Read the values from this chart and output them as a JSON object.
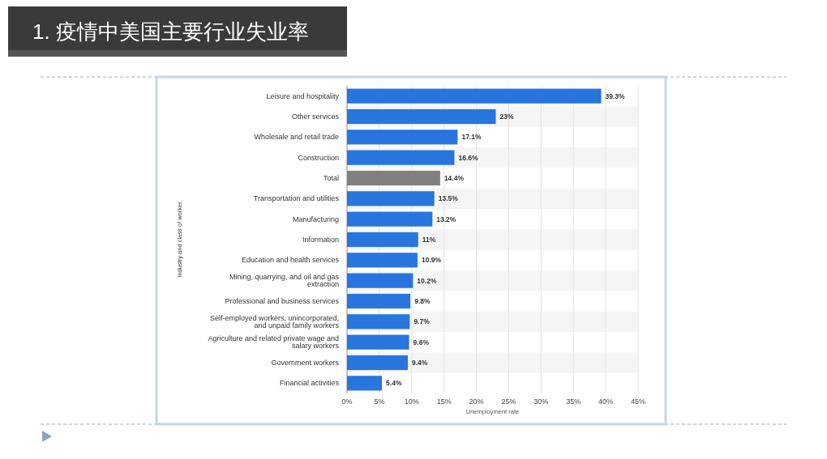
{
  "chart_data": {
    "type": "bar",
    "orientation": "horizontal",
    "title": "1. 疫情中美国主要行业失业率",
    "xlabel": "Unemployment rate",
    "ylabel": "Industry and class of worker",
    "categories": [
      "Leisure and hospitality",
      "Other services",
      "Wholesale and retail trade",
      "Construction",
      "Total",
      "Transportation and utilities",
      "Manufacturing",
      "Information",
      "Education and health services",
      "Mining, quarrying, and oil and gas extraction",
      "Professional and business services",
      "Self-employed workers, unincorporated, and unpaid family workers",
      "Agriculture and related private wage and salary workers",
      "Government workers",
      "Financial activities"
    ],
    "values": [
      39.3,
      23,
      17.1,
      16.6,
      14.4,
      13.5,
      13.2,
      11,
      10.9,
      10.2,
      9.8,
      9.7,
      9.6,
      9.4,
      5.4
    ],
    "colors": [
      "#2876dd",
      "#2876dd",
      "#2876dd",
      "#2876dd",
      "#808080",
      "#2876dd",
      "#2876dd",
      "#2876dd",
      "#2876dd",
      "#2876dd",
      "#2876dd",
      "#2876dd",
      "#2876dd",
      "#2876dd",
      "#2876dd"
    ],
    "value_labels": [
      "39.3%",
      "23%",
      "17.1%",
      "16.6%",
      "14.4%",
      "13.5%",
      "13.2%",
      "11%",
      "10.9%",
      "10.2%",
      "9.8%",
      "9.7%",
      "9.6%",
      "9.4%",
      "5.4%"
    ],
    "xlim": [
      0,
      45
    ],
    "xticks": [
      {
        "value": 0,
        "label": "0%"
      },
      {
        "value": 5,
        "label": "5%"
      },
      {
        "value": 10,
        "label": "10%"
      },
      {
        "value": 15,
        "label": "15%"
      },
      {
        "value": 20,
        "label": "20%"
      },
      {
        "value": 25,
        "label": "25%"
      },
      {
        "value": 30,
        "label": "30%"
      },
      {
        "value": 35,
        "label": "35%"
      },
      {
        "value": 40,
        "label": "40%"
      },
      {
        "value": 45,
        "label": "45%"
      }
    ],
    "grid": "x"
  }
}
